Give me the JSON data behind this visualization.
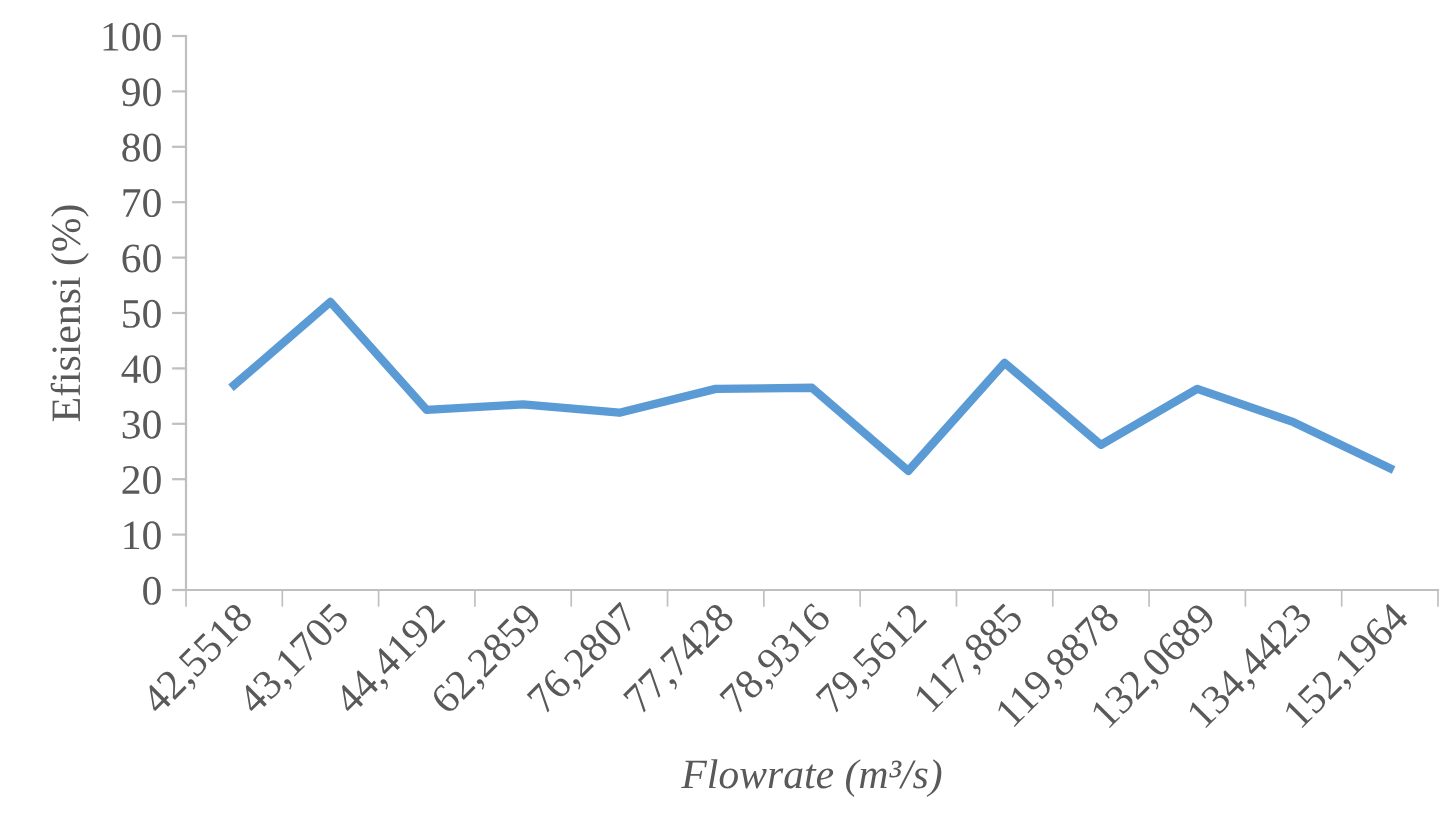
{
  "chart_data": {
    "type": "line",
    "xlabel": "Flowrate (m³/s)",
    "ylabel": "Efisiensi (%)",
    "categories": [
      "42,5518",
      "43,1705",
      "44,4192",
      "62,2859",
      "76,2807",
      "77,7428",
      "78,9316",
      "79,5612",
      "117,885",
      "119,8878",
      "132,0689",
      "134,4423",
      "152,1964"
    ],
    "series": [
      {
        "color": "#5b9bd5",
        "values": [
          37,
          52,
          32.5,
          33.5,
          32,
          36.3,
          36.5,
          21.5,
          41,
          26.2,
          36.3,
          30.3,
          22
        ]
      }
    ],
    "ylim": [
      0,
      100
    ],
    "yticks": [
      0,
      10,
      20,
      30,
      40,
      50,
      60,
      70,
      80,
      90,
      100
    ],
    "marker": "none",
    "line_style": "solid"
  }
}
